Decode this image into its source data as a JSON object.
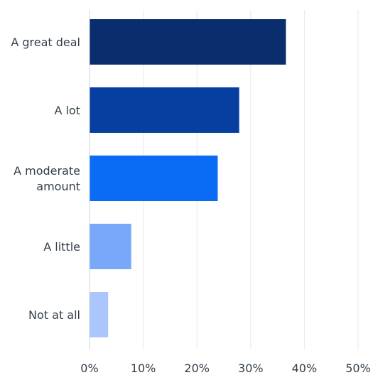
{
  "chart_data": {
    "type": "bar",
    "orientation": "horizontal",
    "categories": [
      [
        "A great deal"
      ],
      [
        "A lot"
      ],
      [
        "A moderate",
        "amount"
      ],
      [
        "A little"
      ],
      [
        "Not at all"
      ]
    ],
    "values": [
      36.5,
      27.8,
      23.8,
      7.7,
      3.4
    ],
    "colors": [
      "#0a2d6e",
      "#063fa0",
      "#0a6cf5",
      "#79a8fb",
      "#aac6fc"
    ],
    "xticks": [
      "0%",
      "10%",
      "20%",
      "30%",
      "40%",
      "50%"
    ],
    "xlim": [
      0,
      50
    ],
    "grid": true,
    "title": "",
    "xlabel": "",
    "ylabel": ""
  }
}
